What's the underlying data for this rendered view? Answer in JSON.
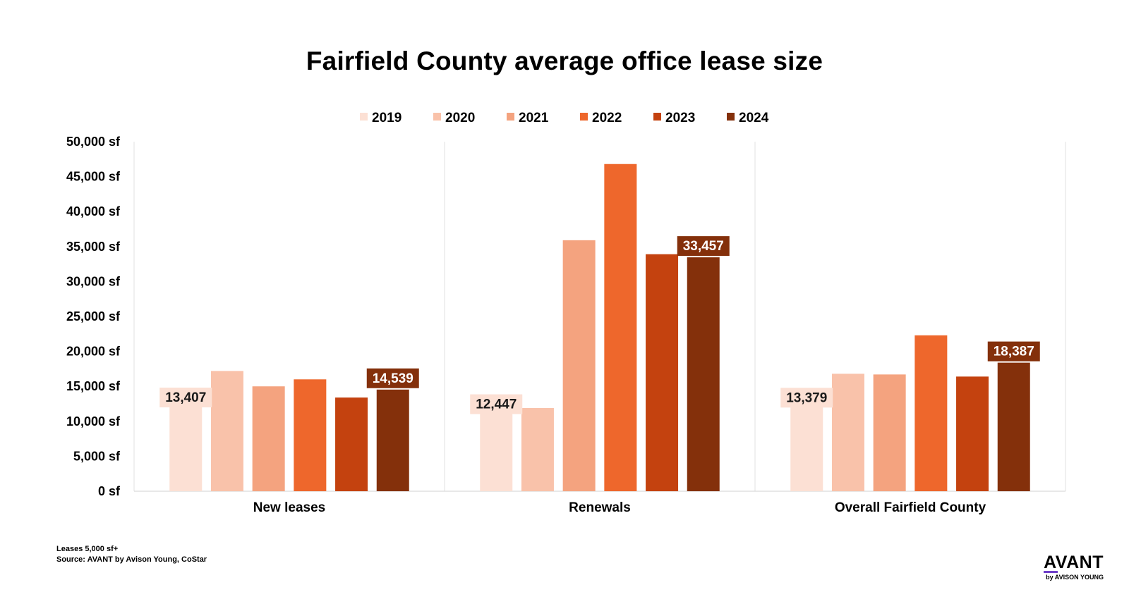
{
  "chart_data": {
    "type": "bar",
    "title": "Fairfield County average office lease size",
    "categories": [
      "New leases",
      "Renewals",
      "Overall Fairfield County"
    ],
    "series": [
      {
        "name": "2019",
        "color": "#fce0d4",
        "values": [
          13407,
          12447,
          13379
        ]
      },
      {
        "name": "2020",
        "color": "#f9c2aa",
        "values": [
          17200,
          11900,
          16800
        ]
      },
      {
        "name": "2021",
        "color": "#f4a37f",
        "values": [
          15000,
          35900,
          16700
        ]
      },
      {
        "name": "2022",
        "color": "#ee672c",
        "values": [
          16000,
          46800,
          22300
        ]
      },
      {
        "name": "2023",
        "color": "#c4420f",
        "values": [
          13400,
          33900,
          16400
        ]
      },
      {
        "name": "2024",
        "color": "#84300b",
        "values": [
          14539,
          33457,
          18387
        ]
      }
    ],
    "data_labels": [
      {
        "series": 0,
        "category": 0,
        "text": "13,407"
      },
      {
        "series": 5,
        "category": 0,
        "text": "14,539"
      },
      {
        "series": 0,
        "category": 1,
        "text": "12,447"
      },
      {
        "series": 5,
        "category": 1,
        "text": "33,457"
      },
      {
        "series": 0,
        "category": 2,
        "text": "13,379"
      },
      {
        "series": 5,
        "category": 2,
        "text": "18,387"
      }
    ],
    "y_ticks": [
      "0 sf",
      "5,000 sf",
      "10,000 sf",
      "15,000 sf",
      "20,000 sf",
      "25,000 sf",
      "30,000 sf",
      "35,000 sf",
      "40,000 sf",
      "45,000 sf",
      "50,000 sf"
    ],
    "ylim": [
      0,
      50000
    ],
    "grid": false,
    "legend_position": "top-center"
  },
  "footnote": {
    "line1": "Leases 5,000 sf+",
    "line2": "Source: AVANT by Avison Young, CoStar"
  },
  "logo": {
    "name": "AVANT",
    "tagline": "by AVISON YOUNG"
  }
}
